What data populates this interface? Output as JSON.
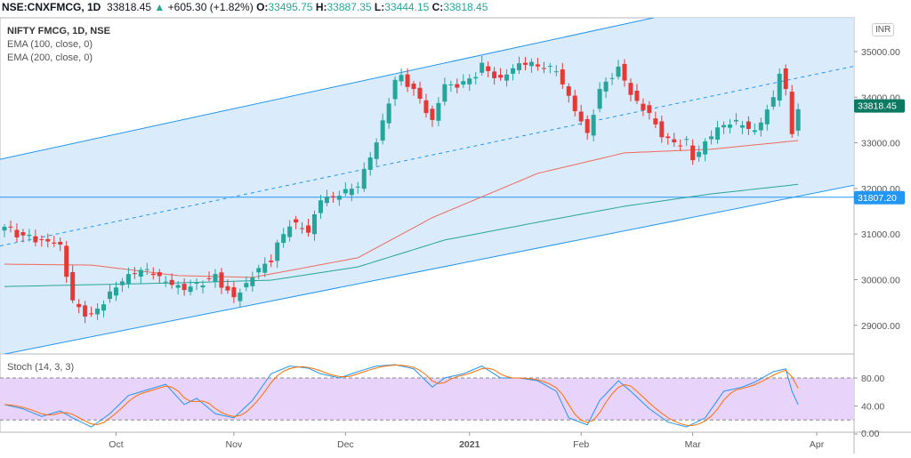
{
  "header": {
    "symbol": "NSE:CNXFMCG, 1D",
    "last": "33818.45",
    "change": "+605.30 (+1.82%)",
    "o_label": "O:",
    "o": "33495.75",
    "h_label": "H:",
    "h": "33887.35",
    "l_label": "L:",
    "l": "33444.15",
    "c_label": "C:",
    "c": "33818.45"
  },
  "legend": {
    "title": "NIFTY FMCG, 1D, NSE",
    "ema100": "EMA (100, close, 0)",
    "ema200": "EMA (200, close, 0)",
    "stoch": "Stoch (14, 3, 3)"
  },
  "currency": "INR",
  "chart_data": {
    "type": "candlestick",
    "title": "NIFTY FMCG, 1D, NSE",
    "price_ticks": [
      35000,
      34000,
      33000,
      32000,
      31000,
      30000,
      29000
    ],
    "price_tick_labels": [
      "35000.00",
      "34000.00",
      "33000.00",
      "32000.00",
      "31000.00",
      "30000.00",
      "29000.00"
    ],
    "last_price_label": "33818.45",
    "last_price": 33818.45,
    "hline_label": "31807.20",
    "hline": 31807.2,
    "stoch_ticks": [
      80,
      40,
      0
    ],
    "stoch_tick_labels": [
      "80.00",
      "40.00",
      "0.00"
    ],
    "stoch_band": [
      20,
      80
    ],
    "time_labels": [
      {
        "bar": 18,
        "text": "Oct"
      },
      {
        "bar": 37,
        "text": "Nov"
      },
      {
        "bar": 55,
        "text": "Dec"
      },
      {
        "bar": 75,
        "text": "2021",
        "bold": true
      },
      {
        "bar": 93,
        "text": "Feb"
      },
      {
        "bar": 111,
        "text": "Mar"
      },
      {
        "bar": 131,
        "text": "Apr"
      }
    ],
    "bars": 129,
    "close_keypoints": [
      [
        0,
        31160
      ],
      [
        3,
        30970
      ],
      [
        6,
        30870
      ],
      [
        9,
        30770
      ],
      [
        11,
        29500
      ],
      [
        14,
        29200
      ],
      [
        17,
        29700
      ],
      [
        20,
        30090
      ],
      [
        23,
        30190
      ],
      [
        26,
        29930
      ],
      [
        29,
        29800
      ],
      [
        31,
        29900
      ],
      [
        34,
        30090
      ],
      [
        37,
        29600
      ],
      [
        40,
        30090
      ],
      [
        43,
        30480
      ],
      [
        46,
        31260
      ],
      [
        49,
        31060
      ],
      [
        51,
        31740
      ],
      [
        54,
        31840
      ],
      [
        57,
        32040
      ],
      [
        60,
        33010
      ],
      [
        63,
        34380
      ],
      [
        64,
        34470
      ],
      [
        66,
        34180
      ],
      [
        69,
        33500
      ],
      [
        71,
        34280
      ],
      [
        74,
        34280
      ],
      [
        77,
        34670
      ],
      [
        80,
        34380
      ],
      [
        83,
        34730
      ],
      [
        86,
        34670
      ],
      [
        89,
        34570
      ],
      [
        91,
        33990
      ],
      [
        94,
        33210
      ],
      [
        96,
        34180
      ],
      [
        99,
        34670
      ],
      [
        101,
        34080
      ],
      [
        104,
        33600
      ],
      [
        107,
        33010
      ],
      [
        110,
        33010
      ],
      [
        111,
        32620
      ],
      [
        113,
        33010
      ],
      [
        116,
        33400
      ],
      [
        119,
        33400
      ],
      [
        121,
        33210
      ],
      [
        124,
        33990
      ],
      [
        125,
        34570
      ],
      [
        126,
        34180
      ],
      [
        127,
        33210
      ],
      [
        128,
        33818
      ]
    ],
    "ema100_keypoints": [
      [
        0,
        30340
      ],
      [
        14,
        30320
      ],
      [
        28,
        30090
      ],
      [
        40,
        30050
      ],
      [
        57,
        30480
      ],
      [
        69,
        31360
      ],
      [
        86,
        32330
      ],
      [
        100,
        32780
      ],
      [
        114,
        32860
      ],
      [
        128,
        33050
      ]
    ],
    "ema200_keypoints": [
      [
        0,
        29850
      ],
      [
        28,
        29930
      ],
      [
        43,
        29990
      ],
      [
        57,
        30280
      ],
      [
        71,
        30870
      ],
      [
        86,
        31260
      ],
      [
        100,
        31610
      ],
      [
        114,
        31880
      ],
      [
        128,
        32090
      ]
    ],
    "channel": {
      "upper": [
        [
          0,
          32660
        ],
        [
          106,
          35780
        ]
      ],
      "lower": [
        [
          0,
          28370
        ],
        [
          137,
          32070
        ]
      ],
      "mid": [
        [
          0,
          30760
        ],
        [
          137,
          34680
        ]
      ]
    },
    "stoch_k_keypoints": [
      [
        0,
        42
      ],
      [
        3,
        36
      ],
      [
        6,
        25
      ],
      [
        9,
        33
      ],
      [
        11,
        23
      ],
      [
        14,
        10
      ],
      [
        17,
        29
      ],
      [
        20,
        55
      ],
      [
        23,
        63
      ],
      [
        26,
        71
      ],
      [
        29,
        42
      ],
      [
        31,
        51
      ],
      [
        34,
        29
      ],
      [
        37,
        23
      ],
      [
        40,
        48
      ],
      [
        43,
        86
      ],
      [
        46,
        97
      ],
      [
        49,
        94
      ],
      [
        51,
        86
      ],
      [
        54,
        80
      ],
      [
        57,
        89
      ],
      [
        60,
        97
      ],
      [
        63,
        99
      ],
      [
        66,
        93
      ],
      [
        69,
        67
      ],
      [
        71,
        80
      ],
      [
        74,
        86
      ],
      [
        77,
        97
      ],
      [
        80,
        80
      ],
      [
        83,
        80
      ],
      [
        86,
        76
      ],
      [
        89,
        61
      ],
      [
        91,
        23
      ],
      [
        94,
        13
      ],
      [
        96,
        48
      ],
      [
        99,
        76
      ],
      [
        101,
        61
      ],
      [
        104,
        36
      ],
      [
        107,
        17
      ],
      [
        110,
        10
      ],
      [
        113,
        23
      ],
      [
        116,
        61
      ],
      [
        119,
        67
      ],
      [
        121,
        74
      ],
      [
        124,
        89
      ],
      [
        126,
        93
      ],
      [
        127,
        61
      ],
      [
        128,
        42
      ]
    ],
    "colors": {
      "up": "#26a69a",
      "down": "#e53935",
      "ema100": "#ef6a5a",
      "ema200": "#26a69a",
      "channel": "#2196f3",
      "fill": "#d4e8fb",
      "stoch_k": "#2196f3",
      "stoch_d": "#ff6d00",
      "stoch_band": "#e8d3fb"
    }
  }
}
